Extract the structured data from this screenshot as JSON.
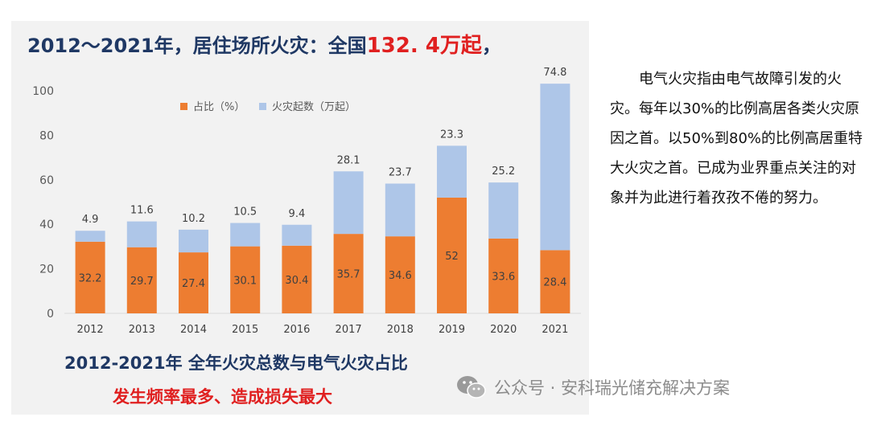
{
  "headline": {
    "prefix": "2012～2021年，居住场所火灾：",
    "mid": "全国",
    "value": "132. 4万起",
    "suffix": "，"
  },
  "chart_data": {
    "type": "bar",
    "stacked": true,
    "categories": [
      "2012",
      "2013",
      "2014",
      "2015",
      "2016",
      "2017",
      "2018",
      "2019",
      "2020",
      "2021"
    ],
    "series": [
      {
        "name": "占比（%）",
        "color": "#ed7d31",
        "values": [
          32.2,
          29.7,
          27.4,
          30.1,
          30.4,
          35.7,
          34.6,
          52,
          33.6,
          28.4
        ]
      },
      {
        "name": "火灾起数（万起）",
        "color": "#aec6e8",
        "values": [
          4.9,
          11.6,
          10.2,
          10.5,
          9.4,
          28.1,
          23.7,
          23.3,
          25.2,
          74.8
        ]
      }
    ],
    "ylim": [
      0,
      100
    ],
    "yticks": [
      0,
      20,
      40,
      60,
      80,
      100
    ],
    "legend_position": "top-left",
    "grid": false
  },
  "subtitle1": "2012-2021年  全年火灾总数与电气火灾占比",
  "subtitle2": "发生频率最多、造成损失最大",
  "side_text": "电气火灾指由电气故障引发的火灾。每年以30%的比例高居各类火灾原因之首。以50%到80%的比例高居重特大火灾之首。已成为业界重点关注的对象并为此进行着孜孜不倦的努力。",
  "watermark": {
    "icon": "wechat-icon",
    "text": "公众号 · 安科瑞光储充解决方案"
  }
}
